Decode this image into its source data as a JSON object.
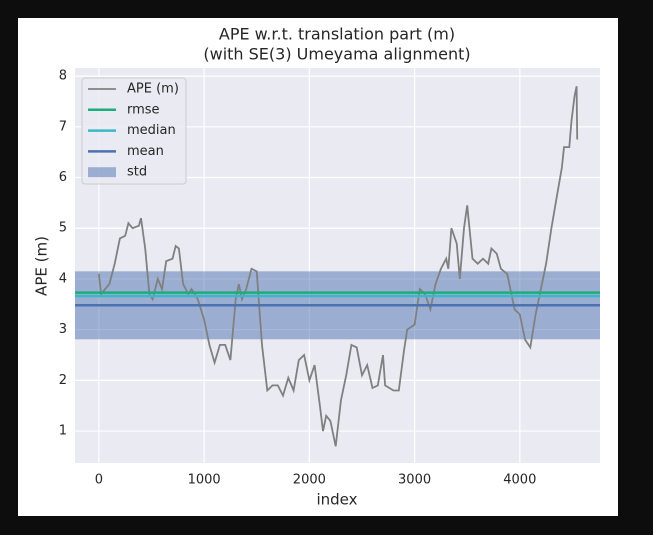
{
  "chart_data": {
    "type": "line",
    "title": "APE w.r.t. translation part (m)",
    "subtitle": "(with SE(3) Umeyama alignment)",
    "x_label": "index",
    "y_label": "APE (m)",
    "xlim": [
      -227,
      4762
    ],
    "ylim": [
      0.37,
      8.16
    ],
    "xticks": [
      0,
      1000,
      2000,
      3000,
      4000
    ],
    "yticks": [
      1,
      2,
      3,
      4,
      5,
      6,
      7,
      8
    ],
    "grid": true,
    "legend": "upper left",
    "series": [
      {
        "name": "APE (m)",
        "color": "#808080",
        "x": [
          0,
          20,
          100,
          150,
          200,
          250,
          280,
          320,
          380,
          400,
          440,
          480,
          510,
          560,
          600,
          640,
          700,
          730,
          760,
          800,
          850,
          880,
          940,
          1000,
          1050,
          1100,
          1150,
          1200,
          1250,
          1300,
          1330,
          1360,
          1400,
          1450,
          1500,
          1550,
          1600,
          1650,
          1700,
          1750,
          1800,
          1850,
          1900,
          1950,
          2000,
          2050,
          2100,
          2130,
          2160,
          2200,
          2250,
          2300,
          2350,
          2400,
          2450,
          2500,
          2550,
          2600,
          2650,
          2700,
          2720,
          2800,
          2850,
          2900,
          2930,
          3000,
          3050,
          3100,
          3150,
          3200,
          3250,
          3300,
          3320,
          3350,
          3400,
          3430,
          3470,
          3500,
          3550,
          3600,
          3650,
          3700,
          3730,
          3780,
          3820,
          3880,
          3950,
          4000,
          4050,
          4100,
          4150,
          4200,
          4250,
          4300,
          4350,
          4400,
          4420,
          4470,
          4490,
          4520,
          4540,
          4545
        ],
        "values": [
          4.1,
          3.7,
          3.9,
          4.3,
          4.8,
          4.85,
          5.1,
          5.0,
          5.05,
          5.2,
          4.6,
          3.7,
          3.6,
          4.0,
          3.8,
          4.35,
          4.4,
          4.65,
          4.6,
          3.9,
          3.7,
          3.8,
          3.6,
          3.2,
          2.7,
          2.35,
          2.7,
          2.7,
          2.4,
          3.6,
          3.9,
          3.6,
          3.8,
          4.2,
          4.15,
          2.7,
          1.8,
          1.9,
          1.9,
          1.7,
          2.05,
          1.8,
          2.4,
          2.5,
          2.0,
          2.3,
          1.5,
          1.0,
          1.3,
          1.2,
          0.7,
          1.6,
          2.1,
          2.7,
          2.65,
          2.1,
          2.3,
          1.85,
          1.9,
          2.5,
          1.9,
          1.8,
          1.8,
          2.6,
          3.0,
          3.1,
          3.8,
          3.7,
          3.4,
          3.9,
          4.2,
          4.4,
          4.2,
          5.0,
          4.7,
          4.0,
          5.0,
          5.45,
          4.4,
          4.3,
          4.4,
          4.3,
          4.6,
          4.5,
          4.2,
          4.1,
          3.4,
          3.3,
          2.8,
          2.65,
          3.3,
          3.8,
          4.3,
          5.0,
          5.6,
          6.2,
          6.6,
          6.6,
          7.1,
          7.6,
          7.8,
          6.75
        ]
      }
    ],
    "hlines": [
      {
        "name": "rmse",
        "color": "#1aae7a",
        "value": 3.73
      },
      {
        "name": "median",
        "color": "#3db7c7",
        "value": 3.66
      },
      {
        "name": "mean",
        "color": "#4c72b0",
        "value": 3.48
      }
    ],
    "band": {
      "name": "std",
      "color": "#4c72b0",
      "value": 0.67
    }
  }
}
